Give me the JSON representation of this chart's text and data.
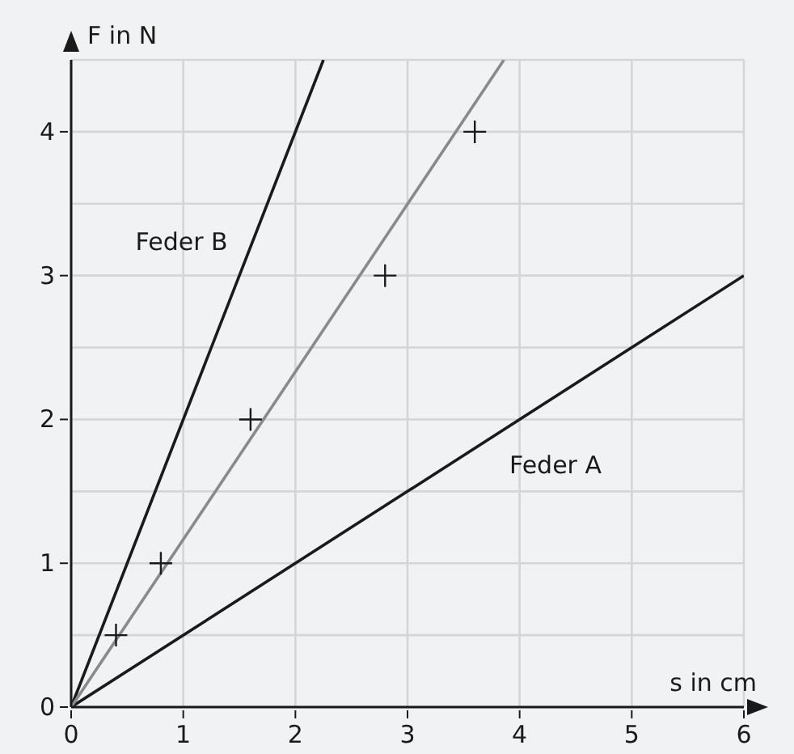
{
  "chart_data": {
    "type": "line",
    "xlabel": "s in cm",
    "ylabel": "F in N",
    "xlim": [
      0,
      6
    ],
    "ylim": [
      0,
      4.5
    ],
    "xticks": [
      0,
      1,
      2,
      3,
      4,
      5,
      6
    ],
    "yticks": [
      0,
      {
        "value": 0.5,
        "label": null
      },
      1,
      {
        "value": 1.5,
        "label": null
      },
      2,
      {
        "value": 2.5,
        "label": null
      },
      3,
      {
        "value": 3.5,
        "label": null
      },
      4,
      {
        "value": 4.5,
        "label": null
      }
    ],
    "grid": true,
    "series": [
      {
        "name": "Feder A",
        "color": "#1a1a1a",
        "x": [
          0,
          6
        ],
        "values": [
          0,
          3
        ]
      },
      {
        "name": "Feder B",
        "color": "#1a1a1a",
        "x": [
          0,
          2.25
        ],
        "values": [
          0,
          4.5
        ]
      },
      {
        "color": "#8a8a8a",
        "x": [
          0,
          3.86
        ],
        "values": [
          0,
          4.5
        ]
      },
      {
        "type": "scatter",
        "color": "#1a1a1a",
        "marker": "cross",
        "x": [
          0.4,
          0.8,
          1.6,
          2.8,
          3.6
        ],
        "values": [
          0.5,
          1,
          2,
          3,
          4
        ]
      }
    ]
  }
}
